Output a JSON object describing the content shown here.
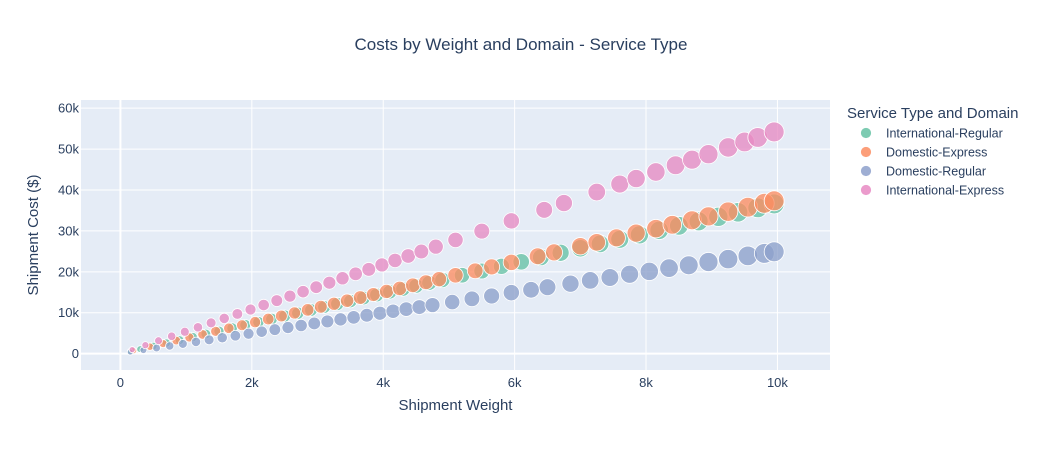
{
  "chart_data": {
    "type": "scatter",
    "title": "Costs by Weight and Domain - Service Type",
    "xlabel": "Shipment Weight",
    "ylabel": "Shipment Cost ($)",
    "xlim": [
      -600,
      10800
    ],
    "ylim": [
      -4000,
      62000
    ],
    "x_ticks": [
      0,
      2000,
      4000,
      6000,
      8000,
      10000
    ],
    "x_tick_labels": [
      "0",
      "2k",
      "4k",
      "6k",
      "8k",
      "10k"
    ],
    "y_ticks": [
      0,
      10000,
      20000,
      30000,
      40000,
      50000,
      60000
    ],
    "y_tick_labels": [
      "0",
      "10k",
      "20k",
      "30k",
      "40k",
      "50k",
      "60k"
    ],
    "grid": true,
    "legend_title": "Service Type and Domain",
    "legend_position": "right",
    "marker_size_encodes": "Shipment Weight",
    "series": [
      {
        "name": "International-Regular",
        "color": "#66c2a5",
        "points": [
          [
            150,
            550
          ],
          [
            300,
            1100
          ],
          [
            500,
            1850
          ],
          [
            700,
            2600
          ],
          [
            900,
            3300
          ],
          [
            1100,
            4050
          ],
          [
            1300,
            4800
          ],
          [
            1500,
            5500
          ],
          [
            1700,
            6250
          ],
          [
            1900,
            7000
          ],
          [
            2100,
            7700
          ],
          [
            2300,
            8450
          ],
          [
            2500,
            9200
          ],
          [
            2700,
            9900
          ],
          [
            2900,
            10650
          ],
          [
            3100,
            11400
          ],
          [
            3300,
            12150
          ],
          [
            3500,
            12850
          ],
          [
            3700,
            13600
          ],
          [
            3900,
            14350
          ],
          [
            4100,
            15100
          ],
          [
            4300,
            15800
          ],
          [
            4500,
            16550
          ],
          [
            4700,
            17300
          ],
          [
            4900,
            18000
          ],
          [
            5200,
            19150
          ],
          [
            5500,
            20200
          ],
          [
            5800,
            21350
          ],
          [
            6100,
            22450
          ],
          [
            6400,
            23550
          ],
          [
            6700,
            24650
          ],
          [
            7000,
            25750
          ],
          [
            7300,
            26850
          ],
          [
            7600,
            27950
          ],
          [
            7900,
            29050
          ],
          [
            8200,
            30150
          ],
          [
            8500,
            31250
          ],
          [
            8800,
            32350
          ],
          [
            9100,
            33450
          ],
          [
            9400,
            34550
          ],
          [
            9700,
            35650
          ],
          [
            9950,
            36600
          ]
        ]
      },
      {
        "name": "Domestic-Express",
        "color": "#fc8d62",
        "points": [
          [
            200,
            750
          ],
          [
            450,
            1700
          ],
          [
            650,
            2450
          ],
          [
            850,
            3200
          ],
          [
            1050,
            3950
          ],
          [
            1250,
            4700
          ],
          [
            1450,
            5450
          ],
          [
            1650,
            6200
          ],
          [
            1850,
            6950
          ],
          [
            2050,
            7700
          ],
          [
            2250,
            8450
          ],
          [
            2450,
            9200
          ],
          [
            2650,
            9950
          ],
          [
            2850,
            10700
          ],
          [
            3050,
            11450
          ],
          [
            3250,
            12200
          ],
          [
            3450,
            12950
          ],
          [
            3650,
            13700
          ],
          [
            3850,
            14450
          ],
          [
            4050,
            15200
          ],
          [
            4250,
            15950
          ],
          [
            4450,
            16700
          ],
          [
            4650,
            17450
          ],
          [
            4850,
            18200
          ],
          [
            5100,
            19150
          ],
          [
            5400,
            20250
          ],
          [
            5650,
            21200
          ],
          [
            5950,
            22300
          ],
          [
            6350,
            23800
          ],
          [
            6600,
            24750
          ],
          [
            7000,
            26250
          ],
          [
            7250,
            27200
          ],
          [
            7550,
            28300
          ],
          [
            7850,
            29450
          ],
          [
            8150,
            30550
          ],
          [
            8400,
            31500
          ],
          [
            8700,
            32600
          ],
          [
            8950,
            33550
          ],
          [
            9250,
            34700
          ],
          [
            9550,
            35800
          ],
          [
            9800,
            36750
          ],
          [
            9950,
            37350
          ]
        ]
      },
      {
        "name": "Domestic-Regular",
        "color": "#8da0cb",
        "points": [
          [
            150,
            375
          ],
          [
            350,
            875
          ],
          [
            550,
            1375
          ],
          [
            750,
            1875
          ],
          [
            950,
            2375
          ],
          [
            1150,
            2875
          ],
          [
            1350,
            3375
          ],
          [
            1550,
            3875
          ],
          [
            1750,
            4375
          ],
          [
            1950,
            4875
          ],
          [
            2150,
            5375
          ],
          [
            2350,
            5875
          ],
          [
            2550,
            6375
          ],
          [
            2750,
            6875
          ],
          [
            2950,
            7375
          ],
          [
            3150,
            7875
          ],
          [
            3350,
            8375
          ],
          [
            3550,
            8875
          ],
          [
            3750,
            9375
          ],
          [
            3950,
            9875
          ],
          [
            4150,
            10375
          ],
          [
            4350,
            10875
          ],
          [
            4550,
            11375
          ],
          [
            4750,
            11875
          ],
          [
            5050,
            12600
          ],
          [
            5350,
            13400
          ],
          [
            5650,
            14100
          ],
          [
            5950,
            14900
          ],
          [
            6250,
            15600
          ],
          [
            6500,
            16250
          ],
          [
            6850,
            17100
          ],
          [
            7150,
            17900
          ],
          [
            7450,
            18600
          ],
          [
            7750,
            19400
          ],
          [
            8050,
            20100
          ],
          [
            8350,
            20900
          ],
          [
            8650,
            21600
          ],
          [
            8950,
            22400
          ],
          [
            9250,
            23100
          ],
          [
            9550,
            23900
          ],
          [
            9800,
            24500
          ],
          [
            9950,
            24900
          ]
        ]
      },
      {
        "name": "International-Express",
        "color": "#e78ac3",
        "points": [
          [
            180,
            980
          ],
          [
            380,
            2070
          ],
          [
            580,
            3160
          ],
          [
            780,
            4250
          ],
          [
            980,
            5340
          ],
          [
            1180,
            6430
          ],
          [
            1380,
            7520
          ],
          [
            1580,
            8610
          ],
          [
            1780,
            9700
          ],
          [
            1980,
            10790
          ],
          [
            2180,
            11880
          ],
          [
            2380,
            12970
          ],
          [
            2580,
            14060
          ],
          [
            2780,
            15150
          ],
          [
            2980,
            16240
          ],
          [
            3180,
            17330
          ],
          [
            3380,
            18420
          ],
          [
            3580,
            19510
          ],
          [
            3780,
            20600
          ],
          [
            3980,
            21690
          ],
          [
            4180,
            22780
          ],
          [
            4380,
            23870
          ],
          [
            4580,
            24960
          ],
          [
            4800,
            26150
          ],
          [
            5100,
            27800
          ],
          [
            5500,
            29950
          ],
          [
            5950,
            32450
          ],
          [
            6450,
            35150
          ],
          [
            6750,
            36800
          ],
          [
            7250,
            39500
          ],
          [
            7600,
            41450
          ],
          [
            7850,
            42800
          ],
          [
            8150,
            44400
          ],
          [
            8450,
            46050
          ],
          [
            8700,
            47400
          ],
          [
            8950,
            48750
          ],
          [
            9250,
            50400
          ],
          [
            9500,
            51750
          ],
          [
            9700,
            52850
          ],
          [
            9950,
            54200
          ]
        ]
      }
    ]
  }
}
